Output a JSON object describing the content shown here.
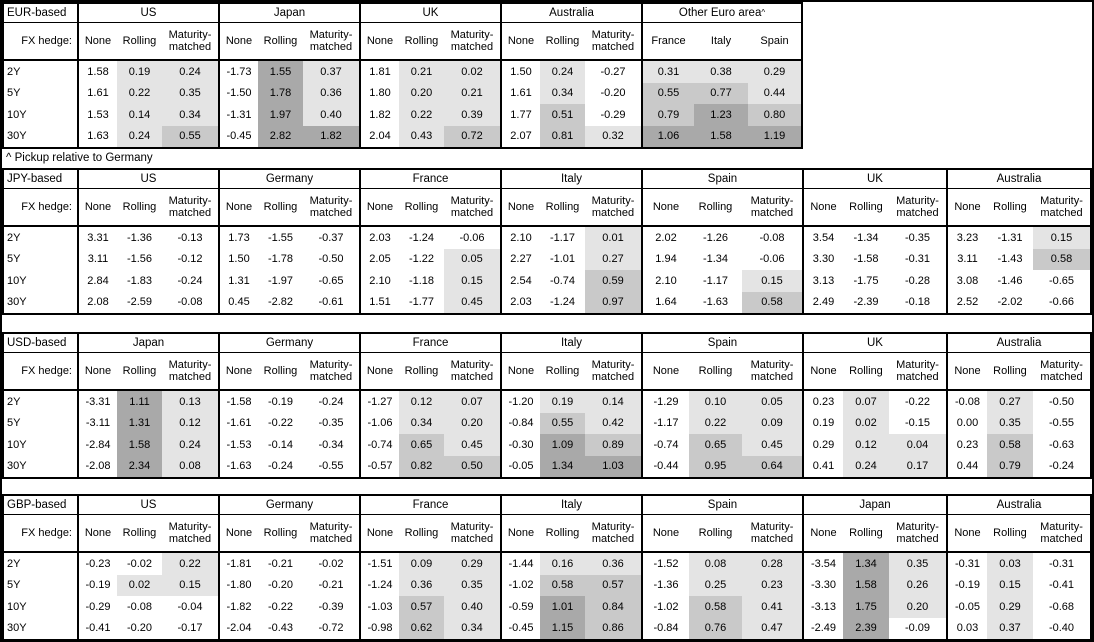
{
  "note": "^ Pickup relative to Germany",
  "fx_hedge_label": "FX hedge:",
  "tenors": [
    "2Y",
    "5Y",
    "10Y",
    "30Y"
  ],
  "sub_headers": [
    "None",
    "Rolling",
    "Maturity-matched"
  ],
  "shading": {
    "negative": "#ffffff",
    "low": "#e4e4e4",
    "mid": "#c9c9c9",
    "high": "#a9a9a9"
  },
  "panels": [
    {
      "title": "EUR-based",
      "groups": [
        {
          "name": "US",
          "columns": [
            "None",
            "Rolling",
            "Maturity-matched"
          ],
          "rows": [
            [
              "1.58",
              "0.19",
              "0.24"
            ],
            [
              "1.61",
              "0.22",
              "0.35"
            ],
            [
              "1.53",
              "0.14",
              "0.34"
            ],
            [
              "1.63",
              "0.24",
              "0.55"
            ]
          ]
        },
        {
          "name": "Japan",
          "columns": [
            "None",
            "Rolling",
            "Maturity-matched"
          ],
          "rows": [
            [
              "-1.73",
              "1.55",
              "0.37"
            ],
            [
              "-1.50",
              "1.78",
              "0.36"
            ],
            [
              "-1.31",
              "1.97",
              "0.40"
            ],
            [
              "-0.45",
              "2.82",
              "1.82"
            ]
          ]
        },
        {
          "name": "UK",
          "columns": [
            "None",
            "Rolling",
            "Maturity-matched"
          ],
          "rows": [
            [
              "1.81",
              "0.21",
              "0.02"
            ],
            [
              "1.80",
              "0.20",
              "0.21"
            ],
            [
              "1.82",
              "0.22",
              "0.39"
            ],
            [
              "2.04",
              "0.43",
              "0.72"
            ]
          ]
        },
        {
          "name": "Australia",
          "columns": [
            "None",
            "Rolling",
            "Maturity-matched"
          ],
          "rows": [
            [
              "1.50",
              "0.24",
              "-0.27"
            ],
            [
              "1.61",
              "0.34",
              "-0.20"
            ],
            [
              "1.77",
              "0.51",
              "-0.29"
            ],
            [
              "2.07",
              "0.81",
              "0.32"
            ]
          ]
        },
        {
          "name": "Other Euro area",
          "footnote_mark": "^",
          "columns": [
            "France",
            "Italy",
            "Spain"
          ],
          "rows": [
            [
              "0.31",
              "0.38",
              "0.29"
            ],
            [
              "0.55",
              "0.77",
              "0.44"
            ],
            [
              "0.79",
              "1.23",
              "0.80"
            ],
            [
              "1.06",
              "1.58",
              "1.19"
            ]
          ]
        }
      ]
    },
    {
      "title": "JPY-based",
      "groups": [
        {
          "name": "US",
          "columns": [
            "None",
            "Rolling",
            "Maturity-matched"
          ],
          "rows": [
            [
              "3.31",
              "-1.36",
              "-0.13"
            ],
            [
              "3.11",
              "-1.56",
              "-0.12"
            ],
            [
              "2.84",
              "-1.83",
              "-0.24"
            ],
            [
              "2.08",
              "-2.59",
              "-0.08"
            ]
          ]
        },
        {
          "name": "Germany",
          "columns": [
            "None",
            "Rolling",
            "Maturity-matched"
          ],
          "rows": [
            [
              "1.73",
              "-1.55",
              "-0.37"
            ],
            [
              "1.50",
              "-1.78",
              "-0.50"
            ],
            [
              "1.31",
              "-1.97",
              "-0.65"
            ],
            [
              "0.45",
              "-2.82",
              "-0.61"
            ]
          ]
        },
        {
          "name": "France",
          "columns": [
            "None",
            "Rolling",
            "Maturity-matched"
          ],
          "rows": [
            [
              "2.03",
              "-1.24",
              "-0.06"
            ],
            [
              "2.05",
              "-1.22",
              "0.05"
            ],
            [
              "2.10",
              "-1.18",
              "0.15"
            ],
            [
              "1.51",
              "-1.77",
              "0.45"
            ]
          ]
        },
        {
          "name": "Italy",
          "columns": [
            "None",
            "Rolling",
            "Maturity-matched"
          ],
          "rows": [
            [
              "2.10",
              "-1.17",
              "0.01"
            ],
            [
              "2.27",
              "-1.01",
              "0.27"
            ],
            [
              "2.54",
              "-0.74",
              "0.59"
            ],
            [
              "2.03",
              "-1.24",
              "0.97"
            ]
          ]
        },
        {
          "name": "Spain",
          "columns": [
            "None",
            "Rolling",
            "Maturity-matched"
          ],
          "rows": [
            [
              "2.02",
              "-1.26",
              "-0.08"
            ],
            [
              "1.94",
              "-1.34",
              "-0.06"
            ],
            [
              "2.10",
              "-1.17",
              "0.15"
            ],
            [
              "1.64",
              "-1.63",
              "0.58"
            ]
          ]
        },
        {
          "name": "UK",
          "columns": [
            "None",
            "Rolling",
            "Maturity-matched"
          ],
          "rows": [
            [
              "3.54",
              "-1.34",
              "-0.35"
            ],
            [
              "3.30",
              "-1.58",
              "-0.31"
            ],
            [
              "3.13",
              "-1.75",
              "-0.28"
            ],
            [
              "2.49",
              "-2.39",
              "-0.18"
            ]
          ]
        },
        {
          "name": "Australia",
          "columns": [
            "None",
            "Rolling",
            "Maturity-matched"
          ],
          "rows": [
            [
              "3.23",
              "-1.31",
              "0.15"
            ],
            [
              "3.11",
              "-1.43",
              "0.58"
            ],
            [
              "3.08",
              "-1.46",
              "-0.65"
            ],
            [
              "2.52",
              "-2.02",
              "-0.66"
            ]
          ]
        }
      ]
    },
    {
      "title": "USD-based",
      "groups": [
        {
          "name": "Japan",
          "columns": [
            "None",
            "Rolling",
            "Maturity-matched"
          ],
          "rows": [
            [
              "-3.31",
              "1.11",
              "0.13"
            ],
            [
              "-3.11",
              "1.31",
              "0.12"
            ],
            [
              "-2.84",
              "1.58",
              "0.24"
            ],
            [
              "-2.08",
              "2.34",
              "0.08"
            ]
          ]
        },
        {
          "name": "Germany",
          "columns": [
            "None",
            "Rolling",
            "Maturity-matched"
          ],
          "rows": [
            [
              "-1.58",
              "-0.19",
              "-0.24"
            ],
            [
              "-1.61",
              "-0.22",
              "-0.35"
            ],
            [
              "-1.53",
              "-0.14",
              "-0.34"
            ],
            [
              "-1.63",
              "-0.24",
              "-0.55"
            ]
          ]
        },
        {
          "name": "France",
          "columns": [
            "None",
            "Rolling",
            "Maturity-matched"
          ],
          "rows": [
            [
              "-1.27",
              "0.12",
              "0.07"
            ],
            [
              "-1.06",
              "0.34",
              "0.20"
            ],
            [
              "-0.74",
              "0.65",
              "0.45"
            ],
            [
              "-0.57",
              "0.82",
              "0.50"
            ]
          ]
        },
        {
          "name": "Italy",
          "columns": [
            "None",
            "Rolling",
            "Maturity-matched"
          ],
          "rows": [
            [
              "-1.20",
              "0.19",
              "0.14"
            ],
            [
              "-0.84",
              "0.55",
              "0.42"
            ],
            [
              "-0.30",
              "1.09",
              "0.89"
            ],
            [
              "-0.05",
              "1.34",
              "1.03"
            ]
          ]
        },
        {
          "name": "Spain",
          "columns": [
            "None",
            "Rolling",
            "Maturity-matched"
          ],
          "rows": [
            [
              "-1.29",
              "0.10",
              "0.05"
            ],
            [
              "-1.17",
              "0.22",
              "0.09"
            ],
            [
              "-0.74",
              "0.65",
              "0.45"
            ],
            [
              "-0.44",
              "0.95",
              "0.64"
            ]
          ]
        },
        {
          "name": "UK",
          "columns": [
            "None",
            "Rolling",
            "Maturity-matched"
          ],
          "rows": [
            [
              "0.23",
              "0.07",
              "-0.22"
            ],
            [
              "0.19",
              "0.02",
              "-0.15"
            ],
            [
              "0.29",
              "0.12",
              "0.04"
            ],
            [
              "0.41",
              "0.24",
              "0.17"
            ]
          ]
        },
        {
          "name": "Australia",
          "columns": [
            "None",
            "Rolling",
            "Maturity-matched"
          ],
          "rows": [
            [
              "-0.08",
              "0.27",
              "-0.50"
            ],
            [
              "0.00",
              "0.35",
              "-0.55"
            ],
            [
              "0.23",
              "0.58",
              "-0.63"
            ],
            [
              "0.44",
              "0.79",
              "-0.24"
            ]
          ]
        }
      ]
    },
    {
      "title": "GBP-based",
      "groups": [
        {
          "name": "US",
          "columns": [
            "None",
            "Rolling",
            "Maturity-matched"
          ],
          "rows": [
            [
              "-0.23",
              "-0.02",
              "0.22"
            ],
            [
              "-0.19",
              "0.02",
              "0.15"
            ],
            [
              "-0.29",
              "-0.08",
              "-0.04"
            ],
            [
              "-0.41",
              "-0.20",
              "-0.17"
            ]
          ]
        },
        {
          "name": "Germany",
          "columns": [
            "None",
            "Rolling",
            "Maturity-matched"
          ],
          "rows": [
            [
              "-1.81",
              "-0.21",
              "-0.02"
            ],
            [
              "-1.80",
              "-0.20",
              "-0.21"
            ],
            [
              "-1.82",
              "-0.22",
              "-0.39"
            ],
            [
              "-2.04",
              "-0.43",
              "-0.72"
            ]
          ]
        },
        {
          "name": "France",
          "columns": [
            "None",
            "Rolling",
            "Maturity-matched"
          ],
          "rows": [
            [
              "-1.51",
              "0.09",
              "0.29"
            ],
            [
              "-1.24",
              "0.36",
              "0.35"
            ],
            [
              "-1.03",
              "0.57",
              "0.40"
            ],
            [
              "-0.98",
              "0.62",
              "0.34"
            ]
          ]
        },
        {
          "name": "Italy",
          "columns": [
            "None",
            "Rolling",
            "Maturity-matched"
          ],
          "rows": [
            [
              "-1.44",
              "0.16",
              "0.36"
            ],
            [
              "-1.02",
              "0.58",
              "0.57"
            ],
            [
              "-0.59",
              "1.01",
              "0.84"
            ],
            [
              "-0.45",
              "1.15",
              "0.86"
            ]
          ]
        },
        {
          "name": "Spain",
          "columns": [
            "None",
            "Rolling",
            "Maturity-matched"
          ],
          "rows": [
            [
              "-1.52",
              "0.08",
              "0.28"
            ],
            [
              "-1.36",
              "0.25",
              "0.23"
            ],
            [
              "-1.02",
              "0.58",
              "0.41"
            ],
            [
              "-0.84",
              "0.76",
              "0.47"
            ]
          ]
        },
        {
          "name": "Japan",
          "columns": [
            "None",
            "Rolling",
            "Maturity-matched"
          ],
          "rows": [
            [
              "-3.54",
              "1.34",
              "0.35"
            ],
            [
              "-3.30",
              "1.58",
              "0.26"
            ],
            [
              "-3.13",
              "1.75",
              "0.20"
            ],
            [
              "-2.49",
              "2.39",
              "-0.09"
            ]
          ]
        },
        {
          "name": "Australia",
          "columns": [
            "None",
            "Rolling",
            "Maturity-matched"
          ],
          "rows": [
            [
              "-0.31",
              "0.03",
              "-0.31"
            ],
            [
              "-0.19",
              "0.15",
              "-0.41"
            ],
            [
              "-0.05",
              "0.29",
              "-0.68"
            ],
            [
              "0.03",
              "0.37",
              "-0.40"
            ]
          ]
        }
      ]
    }
  ]
}
